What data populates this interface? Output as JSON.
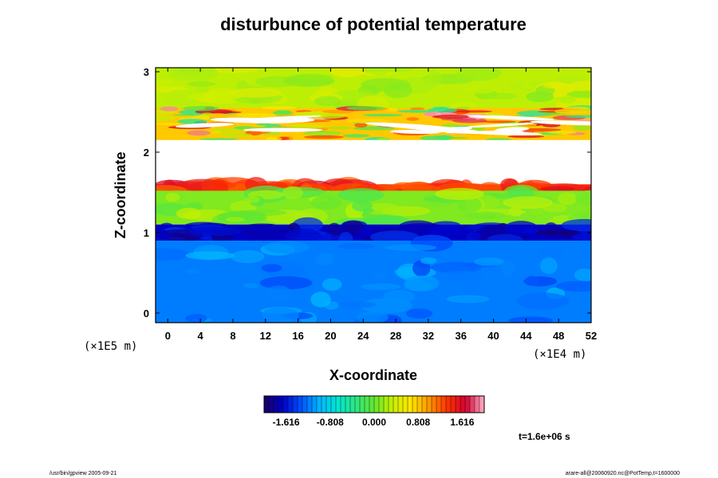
{
  "chart_data": {
    "type": "heatmap",
    "title": "disturbunce of potential temperature",
    "xlabel": "X-coordinate",
    "ylabel": "Z-coordinate",
    "x_scale_label": "(×1E4 m)",
    "y_scale_label": "(×1E5 m)",
    "xlim": [
      -1.5,
      52
    ],
    "ylim": [
      -0.12,
      3.05
    ],
    "x_ticks": [
      0,
      4,
      8,
      12,
      16,
      20,
      24,
      28,
      32,
      36,
      40,
      44,
      48,
      52
    ],
    "y_ticks": [
      0,
      1,
      2,
      3
    ],
    "bands": [
      {
        "z_bottom": 2.55,
        "z_top": 3.05,
        "value": 0.3
      },
      {
        "z_bottom": 2.15,
        "z_top": 2.55,
        "value": 0.8,
        "texture": "turbulent"
      },
      {
        "z_bottom": 1.58,
        "z_top": 2.15,
        "value": null
      },
      {
        "z_bottom": 1.52,
        "z_top": 1.6,
        "value": 1.4
      },
      {
        "z_bottom": 1.1,
        "z_top": 1.52,
        "value": 0.1
      },
      {
        "z_bottom": 0.9,
        "z_top": 1.1,
        "value": -1.7
      },
      {
        "z_bottom": -0.12,
        "z_top": 0.9,
        "value": -1.2
      }
    ],
    "colorbar": {
      "min": -2.02,
      "max": 2.02,
      "ticks": [
        "-1.616",
        "-0.808",
        "0.000",
        "0.808",
        "1.616"
      ],
      "tick_values": [
        -1.616,
        -0.808,
        0.0,
        0.808,
        1.616
      ]
    },
    "annotation": "t=1.6e+06 s"
  },
  "footer": {
    "left": "/usr/bin/gpview 2005-09-21",
    "right": "arare-all@20060920.nc@PotTemp,t=1600000"
  },
  "colors": {
    "stops": [
      "#1a0060",
      "#0000c8",
      "#0050ff",
      "#00b4ff",
      "#00e6d2",
      "#2ee682",
      "#62e62e",
      "#c8f000",
      "#ffe600",
      "#ff9600",
      "#ff3200",
      "#d20032",
      "#ffb4c8"
    ]
  }
}
